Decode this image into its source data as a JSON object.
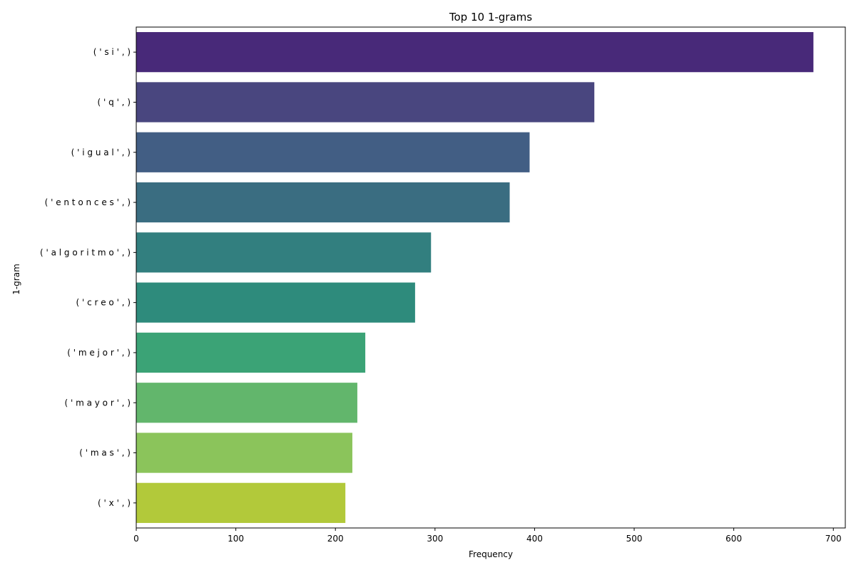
{
  "chart_data": {
    "type": "bar",
    "orientation": "horizontal",
    "title": "Top 10 1-grams",
    "xlabel": "Frequency",
    "ylabel": "1-gram",
    "xlim": [
      0,
      712
    ],
    "x_ticks": [
      0,
      100,
      200,
      300,
      400,
      500,
      600,
      700
    ],
    "grid": false,
    "categories": [
      "( ' s i ' , )",
      "( ' q ' , )",
      "( ' i g u a l ' , )",
      "( ' e n t o n c e s ' , )",
      "( ' a l g o r i t m o ' , )",
      "( ' c r e o ' , )",
      "( ' m e j o r ' , )",
      "( ' m a y o r ' , )",
      "( ' m a s ' , )",
      "( ' x ' , )"
    ],
    "values": [
      680,
      460,
      395,
      375,
      296,
      280,
      230,
      222,
      217,
      210
    ],
    "colors": [
      "#482979",
      "#49467f",
      "#425e84",
      "#3a6d81",
      "#327f7f",
      "#2e8b7c",
      "#3ba376",
      "#62b66c",
      "#8bc45b",
      "#b2c93a"
    ]
  }
}
